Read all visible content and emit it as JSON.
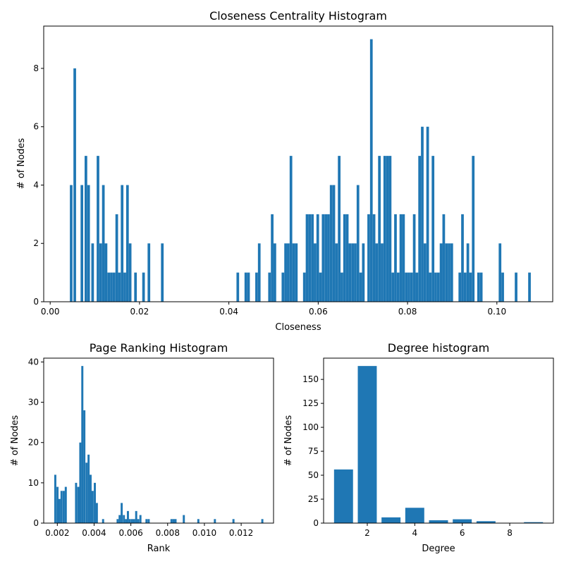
{
  "figure": {
    "background": "#ffffff",
    "bar_color": "#1f77b4"
  },
  "chart_data": [
    {
      "id": "closeness",
      "type": "bar",
      "title": "Closeness Centrality Histogram",
      "xlabel": "Closeness",
      "ylabel": "# of Nodes",
      "xlim": [
        -0.00145,
        0.1125
      ],
      "ylim": [
        0,
        9.45
      ],
      "bar_width": 0.00059,
      "xticks": [
        {
          "value": 0.0,
          "label": "0.00"
        },
        {
          "value": 0.02,
          "label": "0.02"
        },
        {
          "value": 0.04,
          "label": "0.04"
        },
        {
          "value": 0.06,
          "label": "0.06"
        },
        {
          "value": 0.08,
          "label": "0.08"
        },
        {
          "value": 0.1,
          "label": "0.10"
        }
      ],
      "yticks": [
        {
          "value": 0,
          "label": "0"
        },
        {
          "value": 2,
          "label": "2"
        },
        {
          "value": 4,
          "label": "4"
        },
        {
          "value": 6,
          "label": "6"
        },
        {
          "value": 8,
          "label": "8"
        }
      ],
      "bins": [
        [
          0.0047,
          4
        ],
        [
          0.0055,
          8
        ],
        [
          0.0071,
          4
        ],
        [
          0.008,
          5
        ],
        [
          0.0086,
          4
        ],
        [
          0.0095,
          2
        ],
        [
          0.0107,
          5
        ],
        [
          0.0113,
          2
        ],
        [
          0.0119,
          4
        ],
        [
          0.0125,
          2
        ],
        [
          0.0131,
          1
        ],
        [
          0.0137,
          1
        ],
        [
          0.0143,
          1
        ],
        [
          0.0149,
          3
        ],
        [
          0.0155,
          1
        ],
        [
          0.0161,
          4
        ],
        [
          0.0167,
          1
        ],
        [
          0.0173,
          4
        ],
        [
          0.0179,
          2
        ],
        [
          0.0191,
          1
        ],
        [
          0.0209,
          1
        ],
        [
          0.0221,
          2
        ],
        [
          0.0251,
          2
        ],
        [
          0.042,
          1
        ],
        [
          0.0438,
          1
        ],
        [
          0.0444,
          1
        ],
        [
          0.0462,
          1
        ],
        [
          0.0468,
          2
        ],
        [
          0.0491,
          1
        ],
        [
          0.0497,
          3
        ],
        [
          0.0503,
          2
        ],
        [
          0.0521,
          1
        ],
        [
          0.0527,
          2
        ],
        [
          0.0533,
          2
        ],
        [
          0.0539,
          5
        ],
        [
          0.0545,
          2
        ],
        [
          0.0551,
          2
        ],
        [
          0.0569,
          1
        ],
        [
          0.0575,
          3
        ],
        [
          0.0581,
          3
        ],
        [
          0.0587,
          3
        ],
        [
          0.0593,
          2
        ],
        [
          0.0599,
          3
        ],
        [
          0.0605,
          1
        ],
        [
          0.0611,
          3
        ],
        [
          0.0617,
          3
        ],
        [
          0.0623,
          3
        ],
        [
          0.0629,
          4
        ],
        [
          0.0635,
          4
        ],
        [
          0.0641,
          2
        ],
        [
          0.0647,
          5
        ],
        [
          0.0653,
          1
        ],
        [
          0.0659,
          3
        ],
        [
          0.0665,
          3
        ],
        [
          0.0671,
          2
        ],
        [
          0.0677,
          2
        ],
        [
          0.0683,
          2
        ],
        [
          0.0689,
          4
        ],
        [
          0.0695,
          1
        ],
        [
          0.0701,
          2
        ],
        [
          0.0713,
          3
        ],
        [
          0.0719,
          9
        ],
        [
          0.0725,
          3
        ],
        [
          0.0731,
          2
        ],
        [
          0.0737,
          5
        ],
        [
          0.0743,
          2
        ],
        [
          0.0749,
          5
        ],
        [
          0.0755,
          5
        ],
        [
          0.0761,
          5
        ],
        [
          0.0767,
          1
        ],
        [
          0.0773,
          3
        ],
        [
          0.0779,
          1
        ],
        [
          0.0785,
          3
        ],
        [
          0.0791,
          3
        ],
        [
          0.0797,
          1
        ],
        [
          0.0803,
          1
        ],
        [
          0.0809,
          1
        ],
        [
          0.0815,
          3
        ],
        [
          0.0821,
          1
        ],
        [
          0.0827,
          5
        ],
        [
          0.0833,
          6
        ],
        [
          0.0839,
          2
        ],
        [
          0.0845,
          6
        ],
        [
          0.0851,
          1
        ],
        [
          0.0857,
          5
        ],
        [
          0.0863,
          1
        ],
        [
          0.0869,
          1
        ],
        [
          0.0875,
          2
        ],
        [
          0.0881,
          3
        ],
        [
          0.0887,
          2
        ],
        [
          0.0893,
          2
        ],
        [
          0.0899,
          2
        ],
        [
          0.0917,
          1
        ],
        [
          0.0923,
          3
        ],
        [
          0.0929,
          1
        ],
        [
          0.0935,
          2
        ],
        [
          0.0941,
          1
        ],
        [
          0.0947,
          5
        ],
        [
          0.0959,
          1
        ],
        [
          0.0965,
          1
        ],
        [
          0.1007,
          2
        ],
        [
          0.1013,
          1
        ],
        [
          0.1043,
          1
        ],
        [
          0.1073,
          1
        ]
      ]
    },
    {
      "id": "pagerank",
      "type": "bar",
      "title": "Page Ranking Histogram",
      "xlabel": "Rank",
      "ylabel": "# of Nodes",
      "xlim": [
        0.00126,
        0.01376
      ],
      "ylim": [
        0,
        40.95
      ],
      "bar_width": 0.000113,
      "xticks": [
        {
          "value": 0.002,
          "label": "0.002"
        },
        {
          "value": 0.004,
          "label": "0.004"
        },
        {
          "value": 0.006,
          "label": "0.006"
        },
        {
          "value": 0.008,
          "label": "0.008"
        },
        {
          "value": 0.01,
          "label": "0.010"
        },
        {
          "value": 0.012,
          "label": "0.012"
        }
      ],
      "yticks": [
        {
          "value": 0,
          "label": "0"
        },
        {
          "value": 10,
          "label": "10"
        },
        {
          "value": 20,
          "label": "20"
        },
        {
          "value": 30,
          "label": "30"
        },
        {
          "value": 40,
          "label": "40"
        }
      ],
      "bins": [
        [
          0.00189,
          12
        ],
        [
          0.00201,
          9
        ],
        [
          0.00212,
          6
        ],
        [
          0.00223,
          8
        ],
        [
          0.00235,
          8
        ],
        [
          0.00246,
          9
        ],
        [
          0.00302,
          10
        ],
        [
          0.00314,
          9
        ],
        [
          0.00325,
          20
        ],
        [
          0.00336,
          39
        ],
        [
          0.00347,
          28
        ],
        [
          0.00359,
          15
        ],
        [
          0.0037,
          17
        ],
        [
          0.00381,
          12
        ],
        [
          0.00392,
          8
        ],
        [
          0.00404,
          10
        ],
        [
          0.00415,
          5
        ],
        [
          0.00449,
          1
        ],
        [
          0.00528,
          1
        ],
        [
          0.00539,
          2
        ],
        [
          0.0055,
          5
        ],
        [
          0.00562,
          2
        ],
        [
          0.00573,
          1
        ],
        [
          0.00584,
          3
        ],
        [
          0.00595,
          1
        ],
        [
          0.00607,
          1
        ],
        [
          0.00618,
          1
        ],
        [
          0.00629,
          3
        ],
        [
          0.0064,
          1
        ],
        [
          0.00652,
          2
        ],
        [
          0.00685,
          1
        ],
        [
          0.00697,
          1
        ],
        [
          0.00821,
          1
        ],
        [
          0.00832,
          1
        ],
        [
          0.00843,
          1
        ],
        [
          0.00888,
          2
        ],
        [
          0.00967,
          1
        ],
        [
          0.01057,
          1
        ],
        [
          0.01158,
          1
        ],
        [
          0.01315,
          1
        ]
      ]
    },
    {
      "id": "degree",
      "type": "bar",
      "title": "Degree histogram",
      "xlabel": "Degree",
      "ylabel": "# of Nodes",
      "xlim": [
        0.16,
        9.84
      ],
      "ylim": [
        0,
        172.2
      ],
      "bar_width": 0.8,
      "xticks": [
        {
          "value": 2,
          "label": "2"
        },
        {
          "value": 4,
          "label": "4"
        },
        {
          "value": 6,
          "label": "6"
        },
        {
          "value": 8,
          "label": "8"
        }
      ],
      "yticks": [
        {
          "value": 0,
          "label": "0"
        },
        {
          "value": 25,
          "label": "25"
        },
        {
          "value": 50,
          "label": "50"
        },
        {
          "value": 75,
          "label": "75"
        },
        {
          "value": 100,
          "label": "100"
        },
        {
          "value": 125,
          "label": "125"
        },
        {
          "value": 150,
          "label": "150"
        }
      ],
      "bins": [
        [
          1,
          56
        ],
        [
          2,
          164
        ],
        [
          3,
          6
        ],
        [
          4,
          16
        ],
        [
          5,
          3
        ],
        [
          6,
          4
        ],
        [
          7,
          2
        ],
        [
          9,
          1
        ]
      ]
    }
  ]
}
